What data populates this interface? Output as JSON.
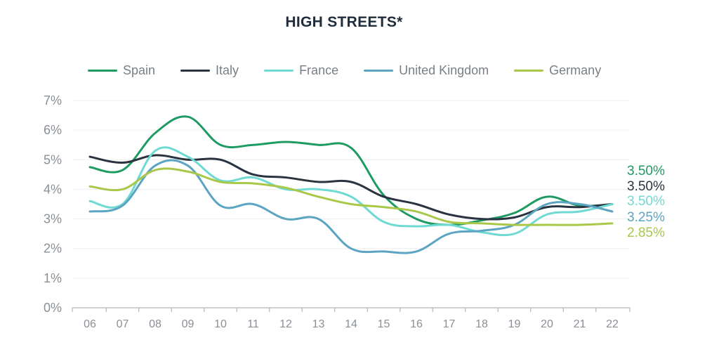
{
  "colors": {
    "spain": "#1e9b62",
    "italy": "#2a3340",
    "france": "#6fd9d4",
    "uk": "#5ba4c2",
    "germany": "#a9c84a",
    "grid": "#eeeeee",
    "axis": "#b5b5b5"
  },
  "chart_data": {
    "type": "line",
    "title": "HIGH STREETS*",
    "xlabel": "",
    "ylabel": "",
    "categories": [
      "06",
      "07",
      "08",
      "09",
      "10",
      "11",
      "12",
      "13",
      "14",
      "15",
      "16",
      "17",
      "18",
      "19",
      "20",
      "21",
      "22"
    ],
    "yticks": [
      "0%",
      "1%",
      "2%",
      "3%",
      "4%",
      "5%",
      "6%",
      "7%"
    ],
    "ylim": [
      0,
      7
    ],
    "grid": true,
    "legend_position": "top",
    "series": [
      {
        "name": "Spain",
        "color": "#1e9b62",
        "end_label": "3.50%",
        "values": [
          4.75,
          4.65,
          5.9,
          6.45,
          5.5,
          5.5,
          5.6,
          5.5,
          5.4,
          3.8,
          3.0,
          2.8,
          2.95,
          3.2,
          3.75,
          3.45,
          3.5
        ]
      },
      {
        "name": "Italy",
        "color": "#2a3340",
        "end_label": "3.50%",
        "values": [
          5.1,
          4.9,
          5.15,
          5.0,
          5.0,
          4.5,
          4.4,
          4.25,
          4.25,
          3.75,
          3.5,
          3.15,
          3.0,
          3.05,
          3.4,
          3.4,
          3.5
        ]
      },
      {
        "name": "France",
        "color": "#6fd9d4",
        "end_label": "3.50%",
        "values": [
          3.6,
          3.5,
          5.3,
          5.1,
          4.3,
          4.4,
          4.0,
          4.0,
          3.75,
          2.9,
          2.75,
          2.8,
          2.55,
          2.5,
          3.15,
          3.25,
          3.5
        ]
      },
      {
        "name": "United Kingdom",
        "color": "#5ba4c2",
        "end_label": "3.25%",
        "values": [
          3.25,
          3.45,
          4.8,
          4.8,
          3.45,
          3.5,
          3.0,
          3.0,
          2.0,
          1.9,
          1.9,
          2.5,
          2.6,
          2.8,
          3.5,
          3.5,
          3.25
        ]
      },
      {
        "name": "Germany",
        "color": "#a9c84a",
        "end_label": "2.85%",
        "values": [
          4.1,
          4.0,
          4.65,
          4.6,
          4.25,
          4.2,
          4.05,
          3.75,
          3.5,
          3.4,
          3.25,
          2.9,
          2.85,
          2.8,
          2.8,
          2.8,
          2.85
        ]
      }
    ]
  }
}
